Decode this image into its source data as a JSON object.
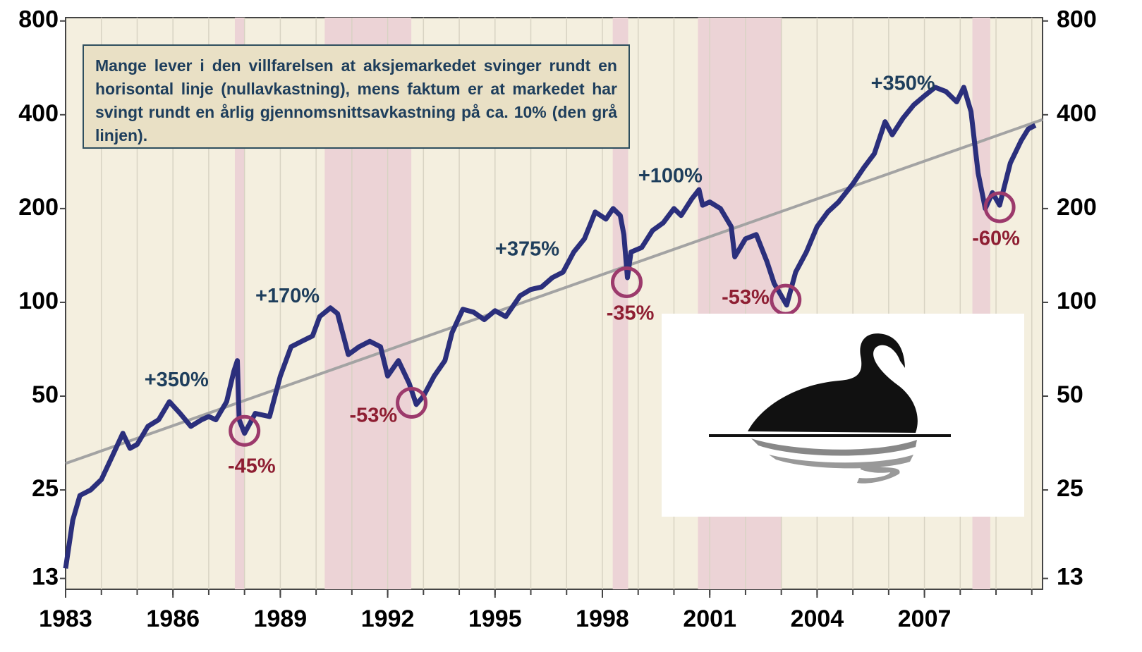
{
  "chart_data": {
    "type": "line",
    "text_box": "Mange lever i den villfarelsen at aksjemarkedet svinger rundt en horisontal linje (nullavkastning), mens faktum er at markedet har svingt rundt en årlig gjennomsnittsavkastning på ca. 10% (den grå linjen).",
    "log_scale": true,
    "xlim": [
      1983,
      2010.3
    ],
    "xticks": [
      1983,
      1986,
      1989,
      1992,
      1995,
      1998,
      2001,
      2004,
      2007
    ],
    "x_gridlines": [
      1984,
      1985,
      1986,
      1987,
      1988,
      1989,
      1990,
      1991,
      1992,
      1993,
      1994,
      1995,
      1996,
      1997,
      1998,
      1999,
      2000,
      2001,
      2002,
      2003,
      2004,
      2005,
      2006,
      2007,
      2008,
      2009,
      2010
    ],
    "ylim": [
      12,
      820
    ],
    "yticks": [
      13,
      25,
      50,
      100,
      200,
      400,
      800
    ],
    "shaded_periods": [
      [
        1987.73,
        1988.0
      ],
      [
        1990.24,
        1992.66
      ],
      [
        1998.29,
        1998.72
      ],
      [
        2000.67,
        2003.02
      ],
      [
        2008.34,
        2008.84
      ]
    ],
    "shade_color": "#ecd3d6",
    "series": [
      {
        "color": "#2b2f7c",
        "x": [
          1983.0,
          1983.2,
          1983.4,
          1983.7,
          1984.0,
          1984.3,
          1984.6,
          1984.8,
          1985.0,
          1985.3,
          1985.6,
          1985.9,
          1986.2,
          1986.5,
          1986.8,
          1987.0,
          1987.2,
          1987.5,
          1987.7,
          1987.8,
          1987.85,
          1988.0,
          1988.3,
          1988.7,
          1989.0,
          1989.3,
          1989.6,
          1989.9,
          1990.1,
          1990.4,
          1990.6,
          1990.9,
          1991.2,
          1991.5,
          1991.8,
          1992.0,
          1992.3,
          1992.6,
          1992.8,
          1993.0,
          1993.3,
          1993.6,
          1993.8,
          1994.1,
          1994.4,
          1994.7,
          1995.0,
          1995.3,
          1995.7,
          1996.0,
          1996.3,
          1996.6,
          1996.9,
          1997.2,
          1997.5,
          1997.8,
          1998.1,
          1998.3,
          1998.5,
          1998.6,
          1998.7,
          1998.8,
          1999.1,
          1999.4,
          1999.7,
          2000.0,
          2000.2,
          2000.5,
          2000.7,
          2000.8,
          2001.0,
          2001.3,
          2001.6,
          2001.7,
          2002.0,
          2002.3,
          2002.6,
          2002.8,
          2003.0,
          2003.15,
          2003.4,
          2003.7,
          2004.0,
          2004.3,
          2004.6,
          2005.0,
          2005.3,
          2005.6,
          2005.9,
          2006.1,
          2006.4,
          2006.7,
          2007.0,
          2007.3,
          2007.6,
          2007.9,
          2008.1,
          2008.3,
          2008.5,
          2008.7,
          2008.9,
          2009.1,
          2009.4,
          2009.7,
          2009.9,
          2010.1
        ],
        "values": [
          14,
          20,
          24,
          25,
          27,
          32,
          38,
          34,
          35,
          40,
          42,
          48,
          44,
          40,
          42,
          43,
          42,
          48,
          60,
          65,
          42,
          38,
          44,
          43,
          58,
          72,
          75,
          78,
          90,
          96,
          92,
          68,
          72,
          75,
          72,
          58,
          65,
          55,
          47,
          50,
          58,
          65,
          80,
          95,
          93,
          88,
          94,
          90,
          105,
          110,
          112,
          120,
          125,
          145,
          160,
          195,
          185,
          200,
          190,
          165,
          120,
          145,
          150,
          170,
          180,
          200,
          190,
          215,
          230,
          205,
          210,
          200,
          175,
          140,
          160,
          165,
          135,
          115,
          105,
          98,
          125,
          145,
          175,
          195,
          210,
          240,
          270,
          300,
          380,
          345,
          390,
          430,
          460,
          490,
          475,
          440,
          490,
          410,
          260,
          200,
          225,
          205,
          280,
          330,
          360,
          370
        ]
      },
      {
        "color": "#a3a3a3",
        "x": [
          1983,
          2010.3
        ],
        "values": [
          30.4,
          386
        ]
      }
    ],
    "gain_labels": [
      {
        "text": "+350%",
        "x": 1986.1,
        "y": 56
      },
      {
        "text": "+170%",
        "x": 1989.2,
        "y": 104
      },
      {
        "text": "+375%",
        "x": 1995.9,
        "y": 147
      },
      {
        "text": "+100%",
        "x": 1999.9,
        "y": 253
      },
      {
        "text": "+350%",
        "x": 2006.4,
        "y": 500
      }
    ],
    "gain_color": "#1e3e5c",
    "drawdowns": [
      {
        "text": "-45%",
        "x": 1988.0,
        "y": 38.7,
        "label_x": 1988.2,
        "label_y": 29.6
      },
      {
        "text": "-53%",
        "x": 1992.67,
        "y": 47.6,
        "label_x": 1991.6,
        "label_y": 43
      },
      {
        "text": "-35%",
        "x": 1998.68,
        "y": 116,
        "label_x": 1998.78,
        "label_y": 91.5
      },
      {
        "text": "-53%",
        "x": 2003.12,
        "y": 102,
        "label_x": 2002.0,
        "label_y": 103
      },
      {
        "text": "-60%",
        "x": 2009.1,
        "y": 202,
        "label_x": 2009.0,
        "label_y": 159
      }
    ],
    "drawdown_color": "#8e1e32",
    "circle_color": "#9c3a6c"
  }
}
